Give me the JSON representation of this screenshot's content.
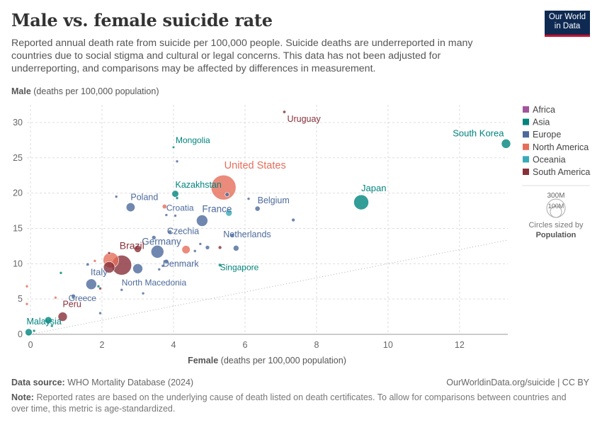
{
  "header": {
    "title": "Male vs. female suicide rate",
    "subtitle": "Reported annual death rate from suicide per 100,000 people. Suicide deaths are underreported in many countries due to social stigma and cultural or legal concerns. This data has not been adjusted for underreporting, and comparisons may be affected by differences in measurement.",
    "logo_line1": "Our World",
    "logo_line2": "in Data"
  },
  "footer": {
    "source_label": "Data source:",
    "source_text": "WHO Mortality Database (2024)",
    "cite": "OurWorldinData.org/suicide | CC BY",
    "note_label": "Note:",
    "note_text": "Reported rates are based on the underlying cause of death listed on death certificates. To allow for comparisons between countries and over time, this metric is age-standardized."
  },
  "colors": {
    "Africa": "#a2559c",
    "Asia": "#00847e",
    "Europe": "#4c6a9c",
    "North America": "#e56e5a",
    "Oceania": "#38aaba",
    "South America": "#883039"
  },
  "chart_data": {
    "type": "scatter",
    "title": "Male vs. female suicide rate",
    "xlabel_bold": "Female",
    "xlabel_rest": "(deaths per 100,000 population)",
    "ylabel_bold": "Male",
    "ylabel_rest": "(deaths per 100,000 population)",
    "xlim": [
      -0.1,
      13.35
    ],
    "ylim": [
      0,
      31.5
    ],
    "xticks": [
      0,
      2,
      4,
      6,
      8,
      10,
      12
    ],
    "yticks": [
      0,
      5,
      10,
      15,
      20,
      25,
      30
    ],
    "legend_title": "",
    "legend": [
      "Africa",
      "Asia",
      "Europe",
      "North America",
      "Oceania",
      "South America"
    ],
    "size_legend": {
      "big": "300M",
      "small": "100M",
      "caption1": "Circles sized by",
      "caption2": "Population"
    },
    "points": [
      {
        "x": 7.1,
        "y": 31.5,
        "r": 2.2,
        "region": "South America",
        "label": "Uruguay"
      },
      {
        "x": 13.3,
        "y": 27.0,
        "r": 6.5,
        "region": "Asia",
        "label": "South Korea"
      },
      {
        "x": 5.4,
        "y": 20.8,
        "r": 17.5,
        "region": "North America",
        "label": "United States"
      },
      {
        "x": 9.25,
        "y": 18.7,
        "r": 10.5,
        "region": "Asia",
        "label": "Japan"
      },
      {
        "x": 4.0,
        "y": 26.5,
        "r": 1.8,
        "region": "Asia",
        "label": "Mongolia"
      },
      {
        "x": 4.05,
        "y": 19.9,
        "r": 4.8,
        "region": "Asia",
        "label": "Kazakhstan"
      },
      {
        "x": 2.8,
        "y": 18.0,
        "r": 6.2,
        "region": "Europe",
        "label": "Poland"
      },
      {
        "x": 3.75,
        "y": 18.1,
        "r": 3.2,
        "region": "North America",
        "label": ""
      },
      {
        "x": 3.8,
        "y": 16.9,
        "r": 2.0,
        "region": "Europe",
        "label": "Croatia"
      },
      {
        "x": 6.35,
        "y": 17.8,
        "r": 3.6,
        "region": "Europe",
        "label": "Belgium"
      },
      {
        "x": 4.8,
        "y": 16.1,
        "r": 8.0,
        "region": "Europe",
        "label": "France"
      },
      {
        "x": 5.55,
        "y": 17.2,
        "r": 4.6,
        "region": "Oceania",
        "label": ""
      },
      {
        "x": 3.9,
        "y": 14.5,
        "r": 2.8,
        "region": "Europe",
        "label": "Czechia"
      },
      {
        "x": 5.65,
        "y": 14.0,
        "r": 2.8,
        "region": "Europe",
        "label": "Netherlands"
      },
      {
        "x": 3.55,
        "y": 11.7,
        "r": 9.0,
        "region": "Europe",
        "label": "Germany"
      },
      {
        "x": 4.35,
        "y": 12.0,
        "r": 5.8,
        "region": "North America",
        "label": ""
      },
      {
        "x": 3.8,
        "y": 10.3,
        "r": 3.2,
        "region": "Europe",
        "label": "Denmark"
      },
      {
        "x": 5.3,
        "y": 9.8,
        "r": 2.3,
        "region": "Asia",
        "label": "Singapore"
      },
      {
        "x": 2.55,
        "y": 9.8,
        "r": 14.0,
        "region": "South America",
        "label": "Brazil"
      },
      {
        "x": 2.25,
        "y": 10.5,
        "r": 11.0,
        "region": "North America",
        "label": ""
      },
      {
        "x": 2.2,
        "y": 9.5,
        "r": 8.0,
        "region": "South America",
        "label": ""
      },
      {
        "x": 3.0,
        "y": 9.3,
        "r": 7.0,
        "region": "Europe",
        "label": ""
      },
      {
        "x": 3.0,
        "y": 12.1,
        "r": 5.0,
        "region": "South America",
        "label": ""
      },
      {
        "x": 1.7,
        "y": 7.1,
        "r": 7.5,
        "region": "Europe",
        "label": "Italy"
      },
      {
        "x": 2.55,
        "y": 6.3,
        "r": 2.0,
        "region": "Europe",
        "label": "North Macedonia"
      },
      {
        "x": 1.2,
        "y": 5.4,
        "r": 3.0,
        "region": "Europe",
        "label": "Greece"
      },
      {
        "x": 0.9,
        "y": 2.5,
        "r": 6.5,
        "region": "South America",
        "label": "Peru"
      },
      {
        "x": -0.05,
        "y": 0.3,
        "r": 5.0,
        "region": "Asia",
        "label": "Malaysia"
      },
      {
        "x": 0.5,
        "y": 2.0,
        "r": 5.0,
        "region": "Asia",
        "label": ""
      },
      {
        "x": 3.45,
        "y": 13.7,
        "r": 3.0,
        "region": "Europe",
        "label": ""
      },
      {
        "x": 4.95,
        "y": 12.3,
        "r": 3.0,
        "region": "Europe",
        "label": ""
      },
      {
        "x": 5.75,
        "y": 12.2,
        "r": 4.0,
        "region": "Europe",
        "label": ""
      },
      {
        "x": 5.3,
        "y": 12.3,
        "r": 2.5,
        "region": "South America",
        "label": ""
      },
      {
        "x": 5.5,
        "y": 19.8,
        "r": 3.0,
        "region": "Europe",
        "label": ""
      },
      {
        "x": 6.1,
        "y": 19.2,
        "r": 2.0,
        "region": "Europe",
        "label": ""
      },
      {
        "x": 7.35,
        "y": 16.2,
        "r": 2.5,
        "region": "Europe",
        "label": ""
      },
      {
        "x": 1.6,
        "y": 9.9,
        "r": 2.2,
        "region": "Europe",
        "label": ""
      },
      {
        "x": 1.95,
        "y": 3.0,
        "r": 2.0,
        "region": "Europe",
        "label": ""
      },
      {
        "x": 3.15,
        "y": 5.8,
        "r": 2.0,
        "region": "Europe",
        "label": ""
      },
      {
        "x": 0.85,
        "y": 8.7,
        "r": 2.0,
        "region": "Asia",
        "label": ""
      },
      {
        "x": 0.6,
        "y": 1.2,
        "r": 2.0,
        "region": "Asia",
        "label": ""
      },
      {
        "x": 1.9,
        "y": 6.8,
        "r": 2.0,
        "region": "Asia",
        "label": ""
      },
      {
        "x": 4.6,
        "y": 11.8,
        "r": 2.0,
        "region": "Europe",
        "label": ""
      },
      {
        "x": 4.05,
        "y": 16.8,
        "r": 2.0,
        "region": "Europe",
        "label": ""
      },
      {
        "x": 4.1,
        "y": 19.3,
        "r": 2.0,
        "region": "Asia",
        "label": ""
      },
      {
        "x": 2.4,
        "y": 19.5,
        "r": 2.0,
        "region": "Europe",
        "label": ""
      },
      {
        "x": 4.1,
        "y": 24.5,
        "r": 2.0,
        "region": "Europe",
        "label": ""
      },
      {
        "x": 4.75,
        "y": 12.8,
        "r": 2.0,
        "region": "Europe",
        "label": ""
      },
      {
        "x": -0.1,
        "y": 6.8,
        "r": 2.0,
        "region": "North America",
        "label": ""
      },
      {
        "x": -0.1,
        "y": 4.3,
        "r": 2.0,
        "region": "North America",
        "label": ""
      },
      {
        "x": 0.7,
        "y": 5.2,
        "r": 2.0,
        "region": "North America",
        "label": ""
      },
      {
        "x": 1.8,
        "y": 10.4,
        "r": 2.0,
        "region": "North America",
        "label": ""
      },
      {
        "x": 2.2,
        "y": 11.5,
        "r": 2.0,
        "region": "South America",
        "label": ""
      },
      {
        "x": 1.95,
        "y": 6.5,
        "r": 2.0,
        "region": "South America",
        "label": ""
      },
      {
        "x": 0.1,
        "y": 0.5,
        "r": 2.0,
        "region": "Asia",
        "label": ""
      },
      {
        "x": 3.7,
        "y": 9.7,
        "r": 2.0,
        "region": "Europe",
        "label": ""
      },
      {
        "x": 3.6,
        "y": 9.2,
        "r": 2.0,
        "region": "Europe",
        "label": ""
      }
    ]
  }
}
